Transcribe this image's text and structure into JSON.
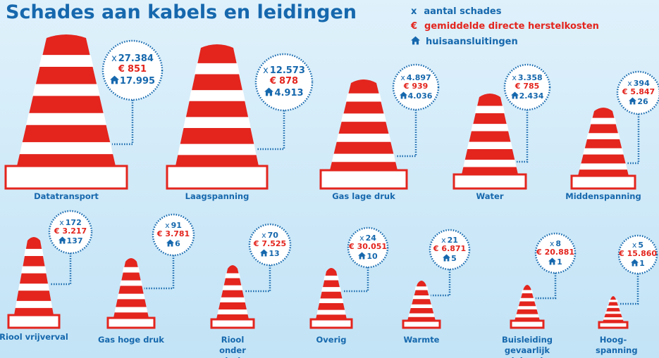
{
  "title": "Schades aan kabels en leidingen",
  "legend": [
    {
      "symbol": "x",
      "label": "aantal schades"
    },
    {
      "symbol": "€",
      "label": "gemiddelde directe herstelkosten"
    },
    {
      "label": "huisaansluitingen"
    }
  ],
  "items": [
    {
      "label": "Datatransport",
      "count": "27.384",
      "cost": "851",
      "connections": "17.995"
    },
    {
      "label": "Laagspanning",
      "count": "12.573",
      "cost": "878",
      "connections": "4.913"
    },
    {
      "label": "Gas lage druk",
      "count": "4.897",
      "cost": "939",
      "connections": "4.036"
    },
    {
      "label": "Water",
      "count": "3.358",
      "cost": "785",
      "connections": "2.434"
    },
    {
      "label": "Middenspanning",
      "count": "394",
      "cost": "5.847",
      "connections": "26"
    },
    {
      "label": "Riool vrijverval",
      "count": "172",
      "cost": "3.217",
      "connections": "137"
    },
    {
      "label": "Gas hoge druk",
      "count": "91",
      "cost": "3.781",
      "connections": "6"
    },
    {
      "label": "Riool onder druk",
      "count": "70",
      "cost": "7.525",
      "connections": "13"
    },
    {
      "label": "Overig",
      "count": "24",
      "cost": "30.051",
      "connections": "10"
    },
    {
      "label": "Warmte",
      "count": "21",
      "cost": "6.871",
      "connections": "5"
    },
    {
      "label": "Buisleiding gevaarlijk inhoud",
      "count": "8",
      "cost": "20.881",
      "connections": "1"
    },
    {
      "label": "Hoog-spanning",
      "count": "5",
      "cost": "15.860",
      "connections": "1"
    }
  ]
}
